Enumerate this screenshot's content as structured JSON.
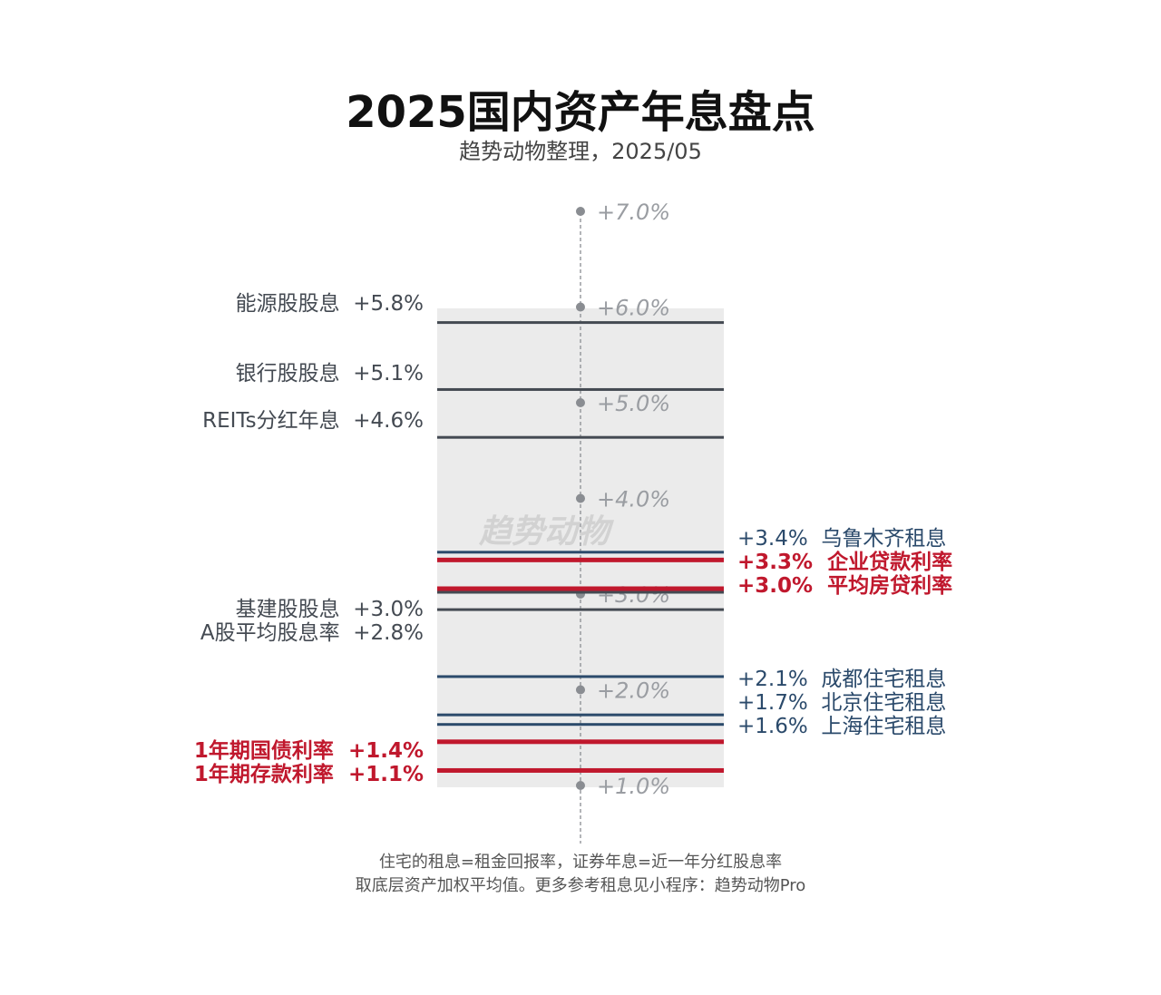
{
  "title": "2025国内资产年息盘点",
  "subtitle": "趋势动物整理，2025/05",
  "watermark": "趋势动物",
  "notes": [
    "住宅的租息=租金回报率，证券年息=近一年分红股息率",
    "取底层资产加权平均值。更多参考租息见小程序：趋势动物Pro"
  ],
  "colors": {
    "red": "#c0182d",
    "navy": "#2b4a6b",
    "gray": "#444a52",
    "band": "#ebebeb",
    "axis": "#8a8d92"
  },
  "chart_data": {
    "type": "line-ladder",
    "title": "2025国内资产年息盘点",
    "ylim": [
      1.0,
      7.0
    ],
    "ticks": [
      {
        "v": 7,
        "label": "+7.0%"
      },
      {
        "v": 6,
        "label": "+6.0%"
      },
      {
        "v": 5,
        "label": "+5.0%"
      },
      {
        "v": 4,
        "label": "+4.0%"
      },
      {
        "v": 3,
        "label": "+3.0%"
      },
      {
        "v": 2,
        "label": "+2.0%"
      },
      {
        "v": 1,
        "label": "+1.0%"
      }
    ],
    "series": [
      {
        "name": "能源股股息",
        "value": 5.8,
        "label": "+5.8%",
        "side": "left",
        "color": "gray"
      },
      {
        "name": "银行股股息",
        "value": 5.1,
        "label": "+5.1%",
        "side": "left",
        "color": "gray"
      },
      {
        "name": "REITs分红年息",
        "value": 4.6,
        "label": "+4.6%",
        "side": "left",
        "color": "gray"
      },
      {
        "name": "乌鲁木齐租息",
        "value": 3.4,
        "label": "+3.4%",
        "side": "right",
        "color": "navy"
      },
      {
        "name": "企业贷款利率",
        "value": 3.3,
        "label": "+3.3%",
        "side": "right",
        "color": "red"
      },
      {
        "name": "平均房贷利率",
        "value": 3.0,
        "label": "+3.0%",
        "side": "right",
        "color": "red"
      },
      {
        "name": "基建股股息",
        "value": 3.0,
        "label": "+3.0%",
        "side": "left",
        "color": "gray"
      },
      {
        "name": "A股平均股息率",
        "value": 2.8,
        "label": "+2.8%",
        "side": "left",
        "color": "gray"
      },
      {
        "name": "成都住宅租息",
        "value": 2.1,
        "label": "+2.1%",
        "side": "right",
        "color": "navy"
      },
      {
        "name": "北京住宅租息",
        "value": 1.7,
        "label": "+1.7%",
        "side": "right",
        "color": "navy"
      },
      {
        "name": "上海住宅租息",
        "value": 1.6,
        "label": "+1.6%",
        "side": "right",
        "color": "navy"
      },
      {
        "name": "1年期国债利率",
        "value": 1.4,
        "label": "+1.4%",
        "side": "left",
        "color": "red"
      },
      {
        "name": "1年期存款利率",
        "value": 1.1,
        "label": "+1.1%",
        "side": "left",
        "color": "red"
      }
    ]
  }
}
